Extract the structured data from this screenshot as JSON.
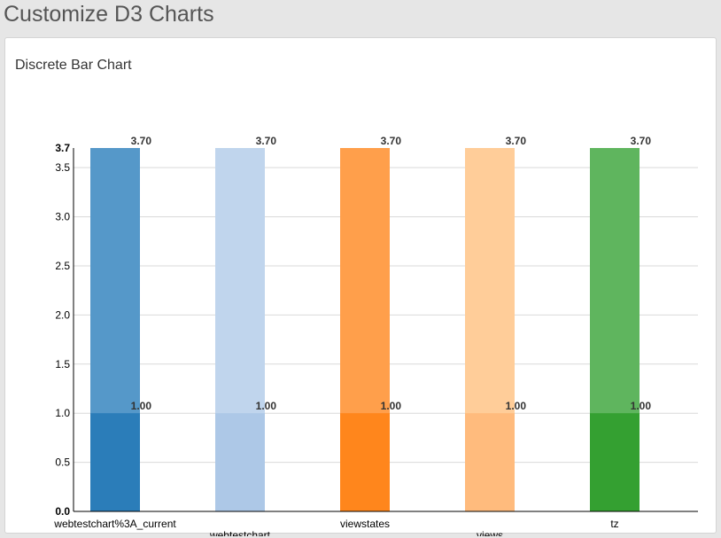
{
  "page": {
    "title": "Customize D3 Charts"
  },
  "panel": {
    "title": "Discrete Bar Chart"
  },
  "chart_data": {
    "type": "bar",
    "title": "Discrete Bar Chart",
    "xlabel": "",
    "ylabel": "",
    "ylim": [
      0,
      3.7
    ],
    "grid": true,
    "categories": [
      "webtestchart%3A_current",
      "webtestchart",
      "viewstates",
      "views",
      "tz"
    ],
    "series": [
      {
        "values": [
          3.7,
          3.7,
          3.7,
          3.7,
          3.7
        ],
        "labels": [
          "3.70",
          "3.70",
          "3.70",
          "3.70",
          "3.70"
        ]
      },
      {
        "values": [
          1.0,
          1.0,
          1.0,
          1.0,
          1.0
        ],
        "labels": [
          "1.00",
          "1.00",
          "1.00",
          "1.00",
          "1.00"
        ]
      }
    ],
    "y_ticks": [
      "0.0",
      "0.5",
      "1.0",
      "1.5",
      "2.0",
      "2.5",
      "3.0",
      "3.5",
      "3.7"
    ],
    "colors_tall": [
      "#5598c9",
      "#c0d5ed",
      "#ff9f4b",
      "#ffcd99",
      "#5fb55e"
    ],
    "colors_short": [
      "#2b7db9",
      "#adc8e7",
      "#ff861c",
      "#ffbb7d",
      "#34a031"
    ]
  }
}
